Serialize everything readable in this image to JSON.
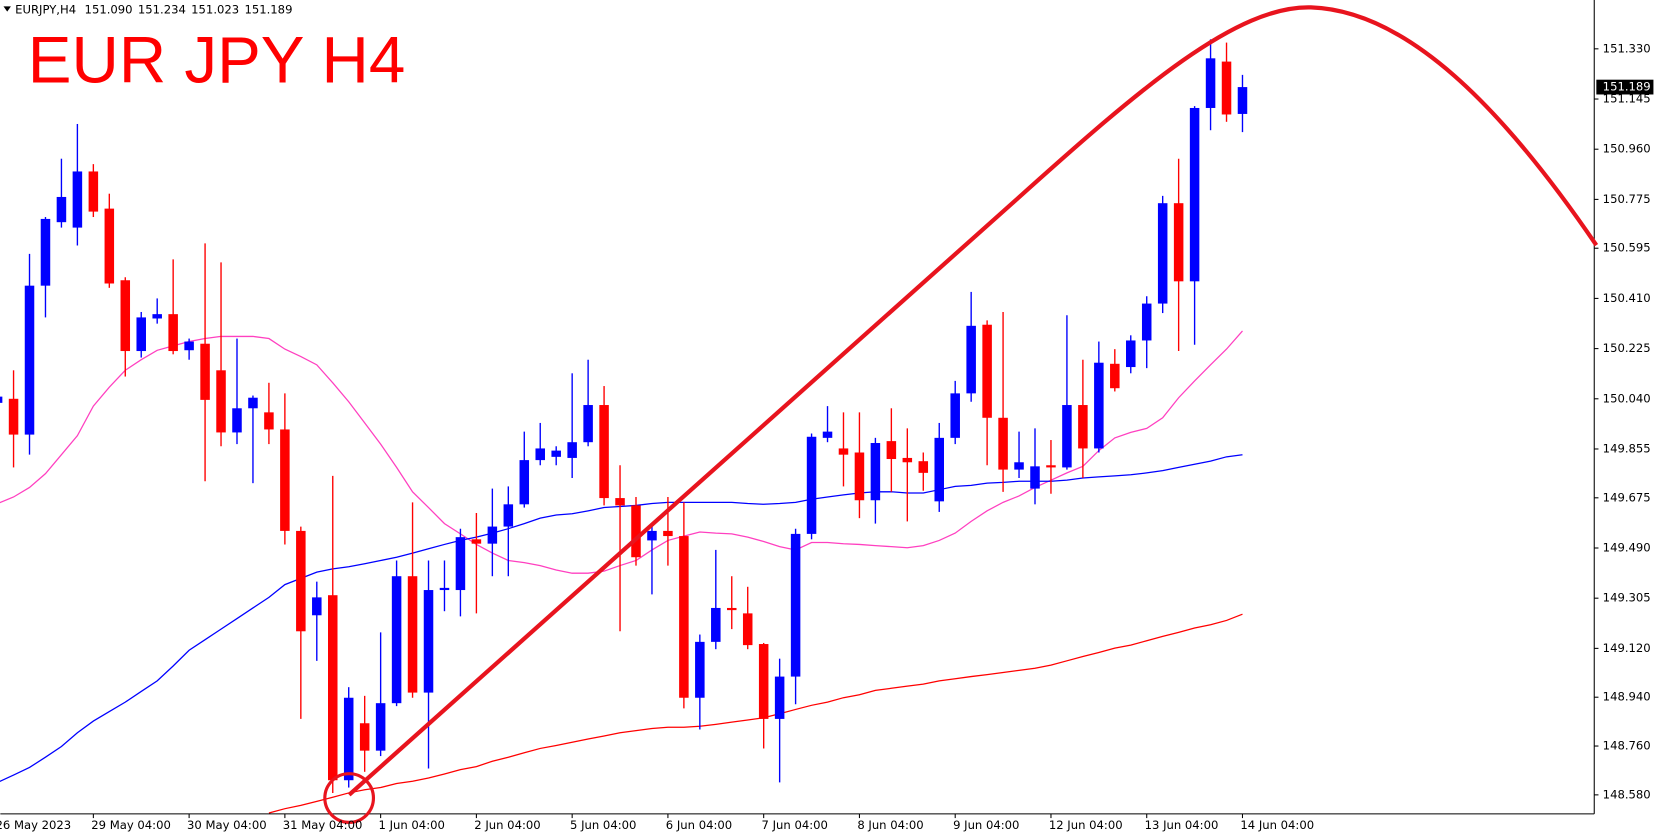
{
  "chart_data": {
    "type": "candlestick",
    "title": "EUR JPY H4",
    "symbol": "EURJPY,H4",
    "header_values": [
      "151.090",
      "151.234",
      "151.023",
      "151.189"
    ],
    "last_price_label": "151.189",
    "up_color": "#0000ff",
    "down_color": "#ff0000",
    "categories": [
      "26 May 2023",
      null,
      null,
      null,
      null,
      null,
      "29 May 04:00",
      null,
      null,
      null,
      null,
      null,
      "30 May 04:00",
      null,
      null,
      null,
      null,
      null,
      "31 May 04:00",
      null,
      null,
      null,
      null,
      null,
      "1 Jun 04:00",
      null,
      null,
      null,
      null,
      null,
      "2 Jun 04:00",
      null,
      null,
      null,
      null,
      null,
      "5 Jun 04:00",
      null,
      null,
      null,
      null,
      null,
      "6 Jun 04:00",
      null,
      null,
      null,
      null,
      null,
      "7 Jun 04:00",
      null,
      null,
      null,
      null,
      null,
      "8 Jun 04:00",
      null,
      null,
      null,
      null,
      null,
      "9 Jun 04:00",
      null,
      null,
      null,
      null,
      null,
      "12 Jun 04:00",
      null,
      null,
      null,
      null,
      null,
      "13 Jun 04:00",
      null,
      null,
      null,
      null,
      null,
      "14 Jun 04:00"
    ],
    "open": [
      150.025,
      150.04,
      149.908,
      150.457,
      150.691,
      150.671,
      150.878,
      150.741,
      150.477,
      150.216,
      150.336,
      150.352,
      150.219,
      150.243,
      150.145,
      149.916,
      150.005,
      149.99,
      149.927,
      149.553,
      149.242,
      149.316,
      148.634,
      148.844,
      148.743,
      148.918,
      149.386,
      148.957,
      149.335,
      149.335,
      149.522,
      149.506,
      149.569,
      149.651,
      149.814,
      149.826,
      149.822,
      149.88,
      150.017,
      149.674,
      149.647,
      149.518,
      149.553,
      149.534,
      148.938,
      149.144,
      149.269,
      149.249,
      149.136,
      148.86,
      149.016,
      149.542,
      149.896,
      149.857,
      149.842,
      149.666,
      149.884,
      149.822,
      149.81,
      149.662,
      149.896,
      150.06,
      150.313,
      149.97,
      149.779,
      149.709,
      149.795,
      149.787,
      150.017,
      149.857,
      150.169,
      150.157,
      150.255,
      150.391,
      150.761,
      150.473,
      151.112,
      151.283,
      151.09
    ],
    "high": [
      150.056,
      150.145,
      150.574,
      150.71,
      150.925,
      151.053,
      150.905,
      150.796,
      150.488,
      150.36,
      150.41,
      150.554,
      150.262,
      150.613,
      150.543,
      150.262,
      150.052,
      150.099,
      150.06,
      149.569,
      149.366,
      149.756,
      148.977,
      148.945,
      149.179,
      149.444,
      149.658,
      149.444,
      149.444,
      149.561,
      149.619,
      149.709,
      149.717,
      149.919,
      149.951,
      149.865,
      150.134,
      150.184,
      150.087,
      149.795,
      149.678,
      149.569,
      149.678,
      149.658,
      149.171,
      149.483,
      149.386,
      149.347,
      149.14,
      149.082,
      149.561,
      149.912,
      150.013,
      149.99,
      149.99,
      149.896,
      150.005,
      149.931,
      149.842,
      149.951,
      150.106,
      150.434,
      150.329,
      150.36,
      149.919,
      149.931,
      149.888,
      150.348,
      150.184,
      150.251,
      150.223,
      150.274,
      150.418,
      150.788,
      150.925,
      151.119,
      151.365,
      151.353,
      151.234
    ],
    "low": [
      150.017,
      149.787,
      149.834,
      150.34,
      150.671,
      150.605,
      150.71,
      150.449,
      150.122,
      150.192,
      150.317,
      150.204,
      150.184,
      149.736,
      149.865,
      149.873,
      149.729,
      149.873,
      149.503,
      148.86,
      149.074,
      148.587,
      148.607,
      148.665,
      148.723,
      148.907,
      148.938,
      148.677,
      149.257,
      149.238,
      149.249,
      149.386,
      149.386,
      149.639,
      149.795,
      149.795,
      149.748,
      149.865,
      149.647,
      149.183,
      149.425,
      149.319,
      149.425,
      148.899,
      148.821,
      149.117,
      149.191,
      149.117,
      148.751,
      148.626,
      148.914,
      149.522,
      149.88,
      149.717,
      149.6,
      149.58,
      149.697,
      149.588,
      149.701,
      149.623,
      149.873,
      150.029,
      149.795,
      149.697,
      149.748,
      149.651,
      149.69,
      149.779,
      149.748,
      149.842,
      150.067,
      150.134,
      150.153,
      150.356,
      150.216,
      150.239,
      151.03,
      151.061,
      151.023
    ],
    "close": [
      150.048,
      149.908,
      150.457,
      150.703,
      150.784,
      150.878,
      150.73,
      150.465,
      150.216,
      150.34,
      150.352,
      150.216,
      150.251,
      150.036,
      149.916,
      150.005,
      150.044,
      149.927,
      149.553,
      149.183,
      149.308,
      148.634,
      148.938,
      148.743,
      148.918,
      149.386,
      148.957,
      149.335,
      149.343,
      149.53,
      149.506,
      149.569,
      149.651,
      149.814,
      149.857,
      149.849,
      149.88,
      150.017,
      149.674,
      149.647,
      149.456,
      149.553,
      149.534,
      148.938,
      149.144,
      149.269,
      149.261,
      149.132,
      148.86,
      149.016,
      149.542,
      149.9,
      149.919,
      149.834,
      149.666,
      149.877,
      149.818,
      149.806,
      149.767,
      149.896,
      150.06,
      150.309,
      149.97,
      149.779,
      149.806,
      149.791,
      149.787,
      150.017,
      149.857,
      150.173,
      150.079,
      150.255,
      150.391,
      150.761,
      150.473,
      151.112,
      151.295,
      151.088,
      151.189
    ],
    "lines": [
      {
        "color": "#ff40c0",
        "values": [
          149.654,
          149.678,
          149.713,
          149.764,
          149.834,
          149.904,
          150.013,
          150.083,
          150.145,
          150.184,
          150.219,
          150.235,
          150.251,
          150.262,
          150.27,
          150.27,
          150.27,
          150.262,
          150.223,
          150.196,
          150.165,
          150.099,
          150.029,
          149.951,
          149.873,
          149.787,
          149.697,
          149.639,
          149.58,
          149.542,
          149.503,
          149.471,
          149.444,
          149.436,
          149.425,
          149.409,
          149.397,
          149.397,
          149.405,
          149.425,
          149.444,
          149.483,
          149.518,
          149.534,
          149.549,
          149.545,
          149.542,
          149.53,
          149.514,
          149.495,
          149.483,
          149.51,
          149.51,
          149.506,
          149.503,
          149.499,
          149.495,
          149.491,
          149.499,
          149.518,
          149.545,
          149.588,
          149.627,
          149.658,
          149.682,
          149.713,
          149.74,
          149.767,
          149.791,
          149.849,
          149.896,
          149.916,
          149.931,
          149.97,
          150.044,
          150.106,
          150.165,
          150.223,
          150.29
        ]
      },
      {
        "color": "#0000ff",
        "values": [
          148.626,
          148.653,
          148.681,
          148.719,
          148.758,
          148.809,
          148.852,
          148.887,
          148.922,
          148.961,
          149.0,
          149.055,
          149.113,
          149.152,
          149.191,
          149.23,
          149.269,
          149.308,
          149.355,
          149.378,
          149.401,
          149.413,
          149.421,
          149.432,
          149.444,
          149.456,
          149.471,
          149.487,
          149.503,
          149.518,
          149.53,
          149.545,
          149.561,
          149.58,
          149.6,
          149.612,
          149.616,
          149.627,
          149.639,
          149.643,
          149.647,
          149.654,
          149.658,
          149.658,
          149.658,
          149.658,
          149.658,
          149.654,
          149.651,
          149.654,
          149.658,
          149.67,
          149.678,
          149.686,
          149.693,
          149.697,
          149.697,
          149.693,
          149.693,
          149.705,
          149.717,
          149.721,
          149.729,
          149.732,
          149.736,
          149.736,
          149.736,
          149.74,
          149.748,
          149.752,
          149.756,
          149.76,
          149.767,
          149.775,
          149.787,
          149.799,
          149.81,
          149.826,
          149.834
        ]
      },
      {
        "color": "#ff0000",
        "values": [
          null,
          null,
          null,
          null,
          null,
          null,
          null,
          null,
          null,
          null,
          null,
          null,
          null,
          null,
          null,
          null,
          null,
          148.513,
          148.529,
          148.541,
          148.556,
          148.571,
          148.587,
          148.599,
          148.607,
          148.622,
          148.63,
          148.642,
          148.657,
          148.673,
          148.684,
          148.704,
          148.719,
          148.735,
          148.751,
          148.762,
          148.774,
          148.786,
          148.797,
          148.809,
          148.817,
          148.825,
          148.829,
          148.829,
          148.833,
          148.84,
          148.848,
          148.856,
          148.864,
          148.879,
          148.895,
          148.91,
          148.922,
          148.938,
          148.949,
          148.965,
          148.973,
          148.981,
          148.988,
          149.0,
          149.008,
          149.016,
          149.023,
          149.031,
          149.039,
          149.047,
          149.058,
          149.074,
          149.09,
          149.105,
          149.121,
          149.132,
          149.148,
          149.164,
          149.179,
          149.195,
          149.207,
          149.223,
          149.246
        ]
      }
    ],
    "ylim": [
      148.51,
      151.51
    ],
    "yticks": [
      {
        "value": 148.58,
        "label": "148.580"
      },
      {
        "value": 148.76,
        "label": "148.760"
      },
      {
        "value": 148.94,
        "label": "148.940"
      },
      {
        "value": 149.12,
        "label": "149.120"
      },
      {
        "value": 149.305,
        "label": "149.305"
      },
      {
        "value": 149.49,
        "label": "149.490"
      },
      {
        "value": 149.675,
        "label": "149.675"
      },
      {
        "value": 149.855,
        "label": "149.855"
      },
      {
        "value": 150.04,
        "label": "150.040"
      },
      {
        "value": 150.225,
        "label": "150.225"
      },
      {
        "value": 150.41,
        "label": "150.410"
      },
      {
        "value": 150.595,
        "label": "150.595"
      },
      {
        "value": 150.775,
        "label": "150.775"
      },
      {
        "value": 150.96,
        "label": "150.960"
      },
      {
        "value": 151.145,
        "label": "151.145"
      },
      {
        "value": 151.33,
        "label": "151.330"
      }
    ]
  }
}
